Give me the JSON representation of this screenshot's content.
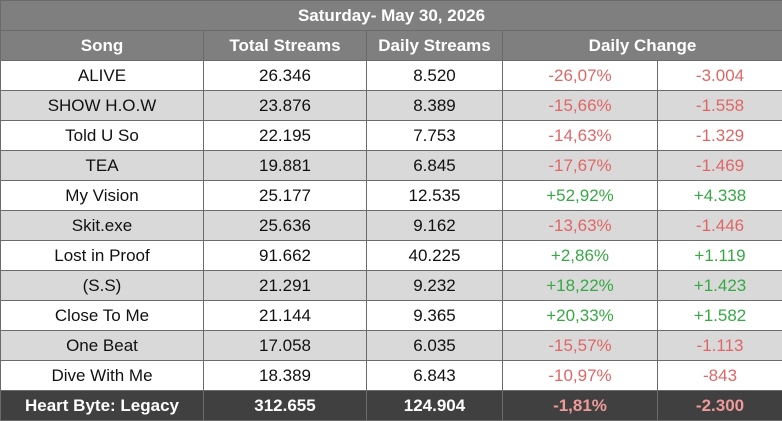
{
  "title": "Saturday- May 30, 2026",
  "table": {
    "header": [
      "Song",
      "Total Streams",
      "Daily Streams",
      "Daily Change"
    ],
    "rows": [
      [
        "ALIVE",
        "26.346",
        "8.520",
        "-26,07%",
        "-3.004"
      ],
      [
        "SHOW H.O.W",
        "23.876",
        "8.389",
        "-15,66%",
        "-1.558"
      ],
      [
        "Told U So",
        "22.195",
        "7.753",
        "-14,63%",
        "-1.329"
      ],
      [
        "TEA",
        "19.881",
        "6.845",
        "-17,67%",
        "-1.469"
      ],
      [
        "My Vision",
        "25.177",
        "12.535",
        "+52,92%",
        "+4.338"
      ],
      [
        "Skit.exe",
        "25.636",
        "9.162",
        "-13,63%",
        "-1.446"
      ],
      [
        "Lost in Proof",
        "91.662",
        "40.225",
        "+2,86%",
        "+1.119"
      ],
      [
        "(S.S)",
        "21.291",
        "9.232",
        "+18,22%",
        "+1.423"
      ],
      [
        "Close To Me",
        "21.144",
        "9.365",
        "+20,33%",
        "+1.582"
      ],
      [
        "One Beat",
        "17.058",
        "6.035",
        "-15,57%",
        "-1.113"
      ],
      [
        "Dive With Me",
        "18.389",
        "6.843",
        "-10,97%",
        "-843"
      ]
    ],
    "footer": [
      "Heart Byte: Legacy",
      "312.655",
      "124.904",
      "-1,81%",
      "-2.300"
    ]
  }
}
